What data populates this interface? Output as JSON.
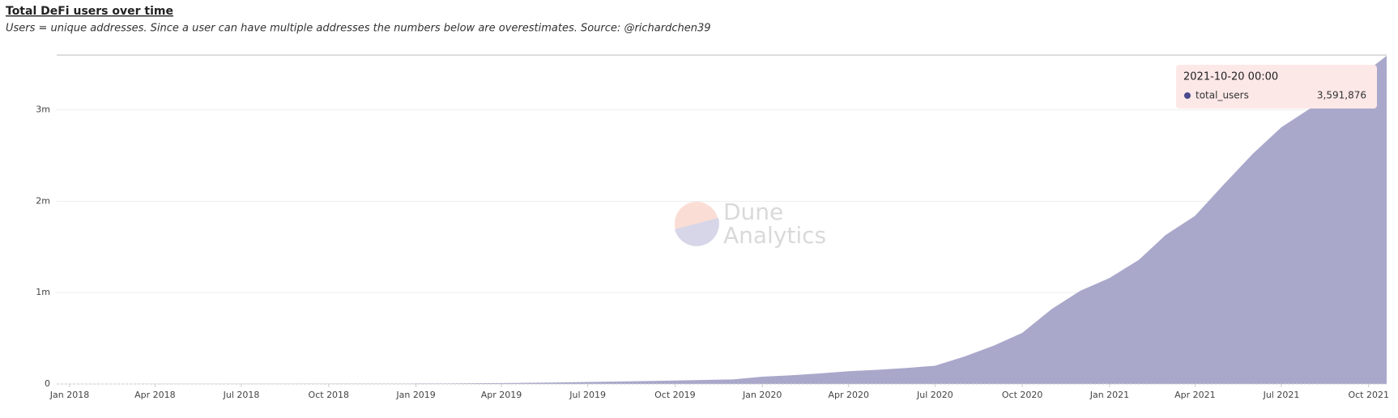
{
  "chart_data": {
    "type": "area",
    "title": "Total DeFi users over time",
    "subtitle": "Users = unique addresses. Since a user can have multiple addresses the numbers below are overestimates. Source: @richardchen39",
    "x": [
      "2018-01",
      "2018-02",
      "2018-03",
      "2018-04",
      "2018-05",
      "2018-06",
      "2018-07",
      "2018-08",
      "2018-09",
      "2018-10",
      "2018-11",
      "2018-12",
      "2019-01",
      "2019-02",
      "2019-03",
      "2019-04",
      "2019-05",
      "2019-06",
      "2019-07",
      "2019-08",
      "2019-09",
      "2019-10",
      "2019-11",
      "2019-12",
      "2020-01",
      "2020-02",
      "2020-03",
      "2020-04",
      "2020-05",
      "2020-06",
      "2020-07",
      "2020-08",
      "2020-09",
      "2020-10",
      "2020-11",
      "2020-12",
      "2021-01",
      "2021-02",
      "2021-03",
      "2021-04",
      "2021-05",
      "2021-06",
      "2021-07",
      "2021-08",
      "2021-09",
      "2021-10",
      "2021-10-20"
    ],
    "series": [
      {
        "name": "total_users",
        "color": "#a9a8cb",
        "values": [
          0,
          200,
          500,
          800,
          1200,
          1600,
          2000,
          2500,
          3000,
          3500,
          4000,
          4500,
          5000,
          6000,
          8000,
          10000,
          13000,
          17000,
          22000,
          27000,
          32000,
          38000,
          44000,
          50000,
          80000,
          95000,
          115000,
          140000,
          155000,
          175000,
          200000,
          300000,
          420000,
          560000,
          820000,
          1020000,
          1160000,
          1360000,
          1630000,
          1840000,
          2180000,
          2520000,
          2810000,
          3020000,
          3240000,
          3440000,
          3591876
        ]
      }
    ],
    "xlim": [
      "2018-01",
      "2021-10-20"
    ],
    "xticks": [
      {
        "value": "2018-01",
        "label": "Jan 2018"
      },
      {
        "value": "2018-04",
        "label": "Apr 2018"
      },
      {
        "value": "2018-07",
        "label": "Jul 2018"
      },
      {
        "value": "2018-10",
        "label": "Oct 2018"
      },
      {
        "value": "2019-01",
        "label": "Jan 2019"
      },
      {
        "value": "2019-04",
        "label": "Apr 2019"
      },
      {
        "value": "2019-07",
        "label": "Jul 2019"
      },
      {
        "value": "2019-10",
        "label": "Oct 2019"
      },
      {
        "value": "2020-01",
        "label": "Jan 2020"
      },
      {
        "value": "2020-04",
        "label": "Apr 2020"
      },
      {
        "value": "2020-07",
        "label": "Jul 2020"
      },
      {
        "value": "2020-10",
        "label": "Oct 2020"
      },
      {
        "value": "2021-01",
        "label": "Jan 2021"
      },
      {
        "value": "2021-04",
        "label": "Apr 2021"
      },
      {
        "value": "2021-07",
        "label": "Jul 2021"
      },
      {
        "value": "2021-10",
        "label": "Oct 2021"
      }
    ],
    "ylim": [
      0,
      3600000
    ],
    "yticks": [
      0,
      {
        "value": 1000000,
        "label": "1m"
      },
      {
        "value": 2000000,
        "label": "2m"
      },
      {
        "value": 3000000,
        "label": "3m"
      }
    ],
    "grid": true,
    "tooltip": {
      "label": "2021-10-20 00:00",
      "value_label": "3,591,876"
    },
    "watermark": [
      "Dune",
      "Analytics"
    ]
  }
}
